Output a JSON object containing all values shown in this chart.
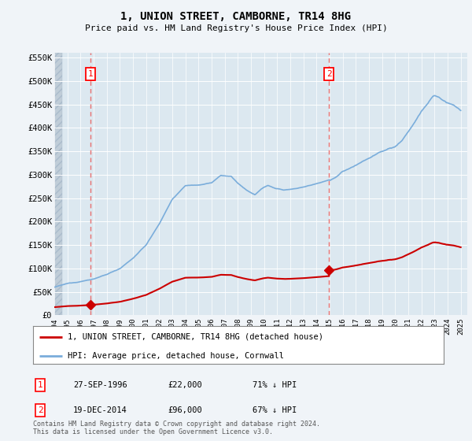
{
  "title": "1, UNION STREET, CAMBORNE, TR14 8HG",
  "subtitle": "Price paid vs. HM Land Registry's House Price Index (HPI)",
  "ylim": [
    0,
    560000
  ],
  "yticks": [
    0,
    50000,
    100000,
    150000,
    200000,
    250000,
    300000,
    350000,
    400000,
    450000,
    500000,
    550000
  ],
  "ytick_labels": [
    "£0",
    "£50K",
    "£100K",
    "£150K",
    "£200K",
    "£250K",
    "£300K",
    "£350K",
    "£400K",
    "£450K",
    "£500K",
    "£550K"
  ],
  "sale1_x": 1996.75,
  "sale1_price": 22000,
  "sale2_x": 2014.96,
  "sale2_price": 96000,
  "hpi_color": "#7aaddb",
  "price_color": "#cc0000",
  "dashed_color": "#e87070",
  "legend_label_price": "1, UNION STREET, CAMBORNE, TR14 8HG (detached house)",
  "legend_label_hpi": "HPI: Average price, detached house, Cornwall",
  "table_rows": [
    {
      "num": "1",
      "date": "27-SEP-1996",
      "price": "£22,000",
      "pct": "71% ↓ HPI"
    },
    {
      "num": "2",
      "date": "19-DEC-2014",
      "price": "£96,000",
      "pct": "67% ↓ HPI"
    }
  ],
  "footnote": "Contains HM Land Registry data © Crown copyright and database right 2024.\nThis data is licensed under the Open Government Licence v3.0.",
  "bg_color": "#f0f4f8",
  "plot_bg_color": "#dce8f0",
  "hatch_color": "#c0cdd8"
}
